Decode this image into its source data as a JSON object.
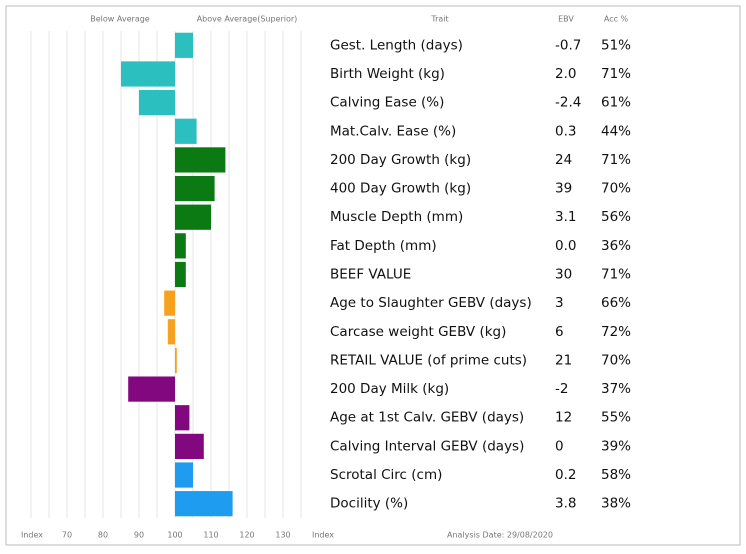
{
  "chart_data": {
    "type": "bar",
    "orientation": "horizontal",
    "header": {
      "below": "Below Average",
      "above": "Above Average(Superior)",
      "trait": "Trait",
      "ebv": "EBV",
      "acc": "Acc %"
    },
    "axis_label": "Index",
    "footer": "Analysis Date: 29/08/2020",
    "categories": [
      "Gest. Length (days)",
      "Birth Weight (kg)",
      "Calving Ease (%)",
      "Mat.Calv. Ease (%)",
      "200 Day Growth (kg)",
      "400 Day Growth (kg)",
      "Muscle Depth (mm)",
      "Fat Depth (mm)",
      "BEEF VALUE",
      "Age to Slaughter GEBV (days)",
      "Carcase weight GEBV (kg)",
      "RETAIL VALUE (of prime cuts)",
      "200 Day Milk (kg)",
      "Age at 1st Calv. GEBV (days)",
      "Calving Interval GEBV (days)",
      "Scrotal Circ (cm)",
      "Docility (%)"
    ],
    "values": [
      105,
      85,
      90,
      106,
      114,
      111,
      110,
      103,
      103,
      97,
      98,
      100.5,
      87,
      104,
      108,
      105,
      116
    ],
    "colors": [
      "#2bbfbf",
      "#2bbfbf",
      "#2bbfbf",
      "#2bbfbf",
      "#0b7a12",
      "#0b7a12",
      "#0b7a12",
      "#0b7a12",
      "#0b7a12",
      "#f6a21e",
      "#f6a21e",
      "#f6a21e",
      "#82087f",
      "#82087f",
      "#82087f",
      "#1e9cf0",
      "#1e9cf0"
    ],
    "ebv": [
      "-0.7",
      "2.0",
      "-2.4",
      "0.3",
      "24",
      "39",
      "3.1",
      "0.0",
      "30",
      "3",
      "6",
      "21",
      "-2",
      "12",
      "0",
      "0.2",
      "3.8"
    ],
    "acc": [
      "51%",
      "71%",
      "61%",
      "44%",
      "71%",
      "70%",
      "56%",
      "36%",
      "71%",
      "66%",
      "72%",
      "70%",
      "37%",
      "55%",
      "39%",
      "58%",
      "38%"
    ],
    "baseline": 100,
    "xlim": [
      60,
      135
    ],
    "xticks": [
      70,
      80,
      90,
      100,
      110,
      120,
      130
    ],
    "xminorticks": [
      60,
      65,
      70,
      75,
      80,
      85,
      90,
      95,
      100,
      105,
      110,
      115,
      120,
      125,
      130,
      135
    ],
    "grid": true
  }
}
